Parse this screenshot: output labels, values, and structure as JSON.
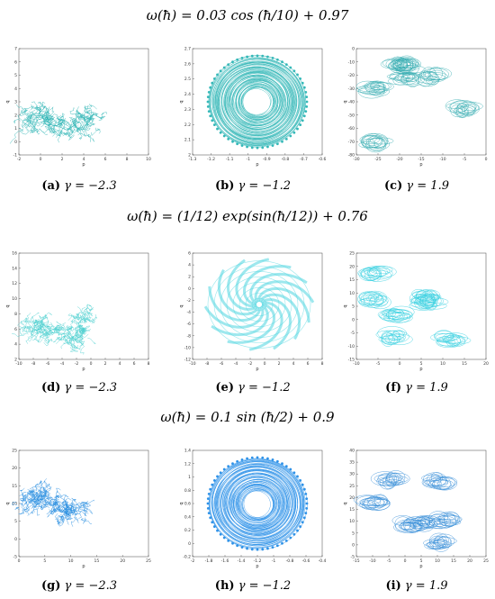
{
  "rows": [
    {
      "formula": "ω(ħ) = 0.03 cos (ħ/10) + 0.97",
      "panels": [
        {
          "label": "(a)",
          "gamma": "γ = −2.3",
          "color": "#2fb5b5",
          "style": "walk",
          "xticks": [
            "-2",
            "0",
            "2",
            "4",
            "6",
            "8",
            "10"
          ],
          "yticks": [
            "-1",
            "0",
            "1",
            "2",
            "3",
            "4",
            "5",
            "6",
            "7"
          ],
          "xlabel": "p",
          "ylabel": "q"
        },
        {
          "label": "(b)",
          "gamma": "γ = −1.2",
          "color": "#35b8b8",
          "style": "annulus",
          "xticks": [
            "-1.3",
            "-1.2",
            "-1.1",
            "-1",
            "-0.9",
            "-0.8",
            "-0.7",
            "-0.6"
          ],
          "yticks": [
            "2",
            "2.1",
            "2.2",
            "2.3",
            "2.4",
            "2.5",
            "2.6",
            "2.7"
          ],
          "xlabel": "p",
          "ylabel": "q"
        },
        {
          "label": "(c)",
          "gamma": "γ = 1.9",
          "color": "#3aaeb3",
          "style": "blobs",
          "xticks": [
            "-30",
            "-25",
            "-20",
            "-15",
            "-10",
            "-5",
            "0"
          ],
          "yticks": [
            "-80",
            "-70",
            "-60",
            "-50",
            "-40",
            "-30",
            "-20",
            "-10",
            "0"
          ],
          "xlabel": "p",
          "ylabel": "q"
        }
      ]
    },
    {
      "formula": "ω(ħ) = (1/12) exp(sin(ħ/12)) + 0.76",
      "panels": [
        {
          "label": "(d)",
          "gamma": "γ = −2.3",
          "color": "#4fd0d0",
          "style": "walk",
          "xticks": [
            "-10",
            "-8",
            "-6",
            "-4",
            "-2",
            "0",
            "2",
            "4",
            "6",
            "8"
          ],
          "yticks": [
            "2",
            "4",
            "6",
            "8",
            "10",
            "12",
            "14",
            "16"
          ],
          "xlabel": "p",
          "ylabel": "q"
        },
        {
          "label": "(e)",
          "gamma": "γ = −1.2",
          "color": "#4fd5e0",
          "style": "spiral",
          "xticks": [
            "-10",
            "-8",
            "-6",
            "-4",
            "-2",
            "0",
            "2",
            "4",
            "6",
            "8"
          ],
          "yticks": [
            "-12",
            "-10",
            "-8",
            "-6",
            "-4",
            "-2",
            "0",
            "2",
            "4",
            "6"
          ],
          "xlabel": "p",
          "ylabel": "q"
        },
        {
          "label": "(f)",
          "gamma": "γ = 1.9",
          "color": "#38d0e0",
          "style": "blobs",
          "xticks": [
            "-10",
            "-5",
            "0",
            "5",
            "10",
            "15",
            "20"
          ],
          "yticks": [
            "-15",
            "-10",
            "-5",
            "0",
            "5",
            "10",
            "15",
            "20",
            "25"
          ],
          "xlabel": "p",
          "ylabel": "q"
        }
      ]
    },
    {
      "formula": "ω(ħ) = 0.1 sin (ħ/2) + 0.9",
      "panels": [
        {
          "label": "(g)",
          "gamma": "γ = −2.3",
          "color": "#2c8fe0",
          "style": "walk",
          "xticks": [
            "0",
            "5",
            "10",
            "15",
            "20",
            "25"
          ],
          "yticks": [
            "-5",
            "0",
            "5",
            "10",
            "15",
            "20",
            "25"
          ],
          "xlabel": "p",
          "ylabel": "q"
        },
        {
          "label": "(h)",
          "gamma": "γ = −1.2",
          "color": "#2e92e8",
          "style": "annulus",
          "xticks": [
            "-2",
            "-1.8",
            "-1.6",
            "-1.4",
            "-1.2",
            "-1",
            "-0.8",
            "-0.6",
            "-0.4"
          ],
          "yticks": [
            "-0.2",
            "0",
            "0.2",
            "0.4",
            "0.6",
            "0.8",
            "1",
            "1.2",
            "1.4"
          ],
          "xlabel": "p",
          "ylabel": "q"
        },
        {
          "label": "(i)",
          "gamma": "γ = 1.9",
          "color": "#3a8fd8",
          "style": "blobs",
          "xticks": [
            "-15",
            "-10",
            "-5",
            "0",
            "5",
            "10",
            "15",
            "20",
            "25"
          ],
          "yticks": [
            "-5",
            "0",
            "5",
            "10",
            "15",
            "20",
            "25",
            "30",
            "35",
            "40"
          ],
          "xlabel": "p",
          "ylabel": "q"
        }
      ]
    }
  ]
}
